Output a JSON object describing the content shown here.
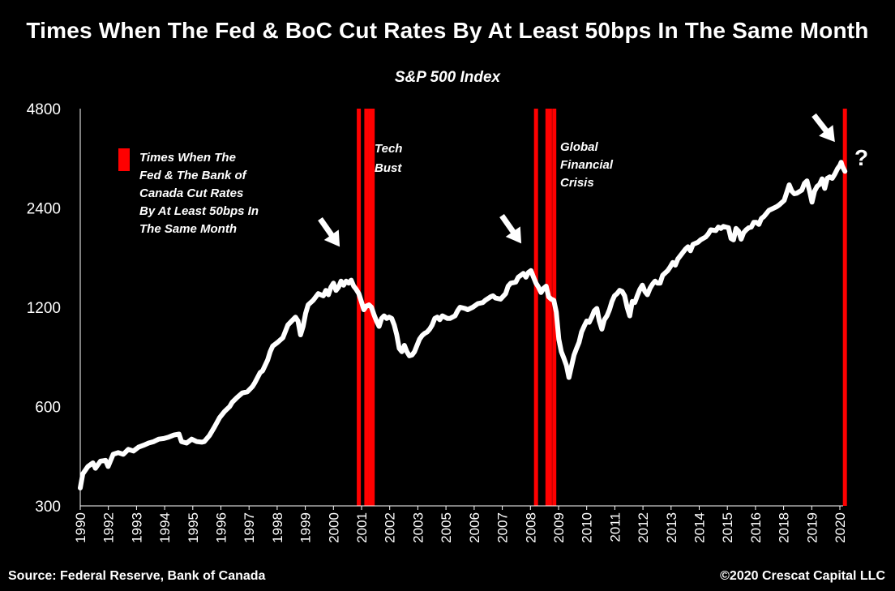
{
  "chart_data": {
    "type": "line",
    "title": "Times When The Fed & BoC Cut Rates By At Least 50bps In The Same Month",
    "subtitle": "S&P 500 Index",
    "y_scale": "log",
    "ylim": [
      300,
      4800
    ],
    "y_ticks": [
      "300",
      "600",
      "1200",
      "2400",
      "4800"
    ],
    "xlim": [
      1990,
      2020
    ],
    "x_tick_labels": [
      "1990",
      "1992",
      "1993",
      "1994",
      "1995",
      "1996",
      "1997",
      "1998",
      "1999",
      "2000",
      "2001",
      "2002",
      "2003",
      "2005",
      "2006",
      "2007",
      "2008",
      "2009",
      "2010",
      "2011",
      "2012",
      "2013",
      "2014",
      "2015",
      "2016",
      "2018",
      "2019",
      "2020"
    ],
    "series": [
      {
        "name": "S&P 500 Index",
        "color": "#ffffff",
        "points": [
          [
            1990.0,
            340
          ],
          [
            1990.1,
            375
          ],
          [
            1990.3,
            395
          ],
          [
            1990.5,
            405
          ],
          [
            1990.6,
            390
          ],
          [
            1990.8,
            410
          ],
          [
            1991.0,
            412
          ],
          [
            1991.1,
            395
          ],
          [
            1991.3,
            430
          ],
          [
            1991.5,
            435
          ],
          [
            1991.7,
            430
          ],
          [
            1991.9,
            445
          ],
          [
            1992.1,
            440
          ],
          [
            1992.3,
            452
          ],
          [
            1992.5,
            458
          ],
          [
            1992.7,
            465
          ],
          [
            1992.9,
            470
          ],
          [
            1993.1,
            478
          ],
          [
            1993.3,
            480
          ],
          [
            1993.5,
            485
          ],
          [
            1993.7,
            492
          ],
          [
            1993.9,
            495
          ],
          [
            1994.0,
            470
          ],
          [
            1994.2,
            465
          ],
          [
            1994.4,
            478
          ],
          [
            1994.6,
            470
          ],
          [
            1994.8,
            468
          ],
          [
            1994.9,
            470
          ],
          [
            1995.1,
            490
          ],
          [
            1995.3,
            520
          ],
          [
            1995.5,
            555
          ],
          [
            1995.7,
            580
          ],
          [
            1995.9,
            600
          ],
          [
            1996.0,
            618
          ],
          [
            1996.2,
            640
          ],
          [
            1996.4,
            660
          ],
          [
            1996.6,
            665
          ],
          [
            1996.8,
            690
          ],
          [
            1996.9,
            710
          ],
          [
            1997.1,
            760
          ],
          [
            1997.2,
            770
          ],
          [
            1997.4,
            830
          ],
          [
            1997.5,
            880
          ],
          [
            1997.6,
            915
          ],
          [
            1997.8,
            940
          ],
          [
            1997.9,
            955
          ],
          [
            1998.0,
            970
          ],
          [
            1998.2,
            1060
          ],
          [
            1998.4,
            1100
          ],
          [
            1998.5,
            1120
          ],
          [
            1998.6,
            1090
          ],
          [
            1998.7,
            990
          ],
          [
            1998.8,
            1050
          ],
          [
            1998.9,
            1150
          ],
          [
            1999.0,
            1220
          ],
          [
            1999.2,
            1260
          ],
          [
            1999.4,
            1320
          ],
          [
            1999.6,
            1300
          ],
          [
            1999.7,
            1350
          ],
          [
            1999.8,
            1310
          ],
          [
            1999.9,
            1380
          ],
          [
            2000.0,
            1420
          ],
          [
            2000.1,
            1350
          ],
          [
            2000.2,
            1380
          ],
          [
            2000.3,
            1440
          ],
          [
            2000.4,
            1400
          ],
          [
            2000.5,
            1440
          ],
          [
            2000.6,
            1420
          ],
          [
            2000.7,
            1450
          ],
          [
            2000.8,
            1390
          ],
          [
            2000.9,
            1360
          ],
          [
            2001.0,
            1320
          ],
          [
            2001.1,
            1250
          ],
          [
            2001.2,
            1180
          ],
          [
            2001.3,
            1210
          ],
          [
            2001.4,
            1220
          ],
          [
            2001.5,
            1200
          ],
          [
            2001.6,
            1140
          ],
          [
            2001.7,
            1090
          ],
          [
            2001.8,
            1050
          ],
          [
            2001.9,
            1110
          ],
          [
            2002.0,
            1130
          ],
          [
            2002.1,
            1110
          ],
          [
            2002.2,
            1120
          ],
          [
            2002.3,
            1110
          ],
          [
            2002.4,
            1060
          ],
          [
            2002.5,
            990
          ],
          [
            2002.6,
            900
          ],
          [
            2002.7,
            880
          ],
          [
            2002.8,
            920
          ],
          [
            2002.9,
            880
          ],
          [
            2003.0,
            855
          ],
          [
            2003.1,
            860
          ],
          [
            2003.2,
            880
          ],
          [
            2003.3,
            920
          ],
          [
            2003.4,
            960
          ],
          [
            2003.5,
            985
          ],
          [
            2003.6,
            1000
          ],
          [
            2003.7,
            1010
          ],
          [
            2003.8,
            1030
          ],
          [
            2003.9,
            1060
          ],
          [
            2004.0,
            1110
          ],
          [
            2004.1,
            1120
          ],
          [
            2004.2,
            1100
          ],
          [
            2004.3,
            1130
          ],
          [
            2004.5,
            1110
          ],
          [
            2004.6,
            1110
          ],
          [
            2004.8,
            1130
          ],
          [
            2004.9,
            1170
          ],
          [
            2005.0,
            1200
          ],
          [
            2005.2,
            1190
          ],
          [
            2005.3,
            1180
          ],
          [
            2005.5,
            1200
          ],
          [
            2005.7,
            1230
          ],
          [
            2005.9,
            1240
          ],
          [
            2006.0,
            1260
          ],
          [
            2006.2,
            1290
          ],
          [
            2006.3,
            1300
          ],
          [
            2006.4,
            1280
          ],
          [
            2006.6,
            1270
          ],
          [
            2006.8,
            1320
          ],
          [
            2006.9,
            1390
          ],
          [
            2007.0,
            1420
          ],
          [
            2007.2,
            1430
          ],
          [
            2007.3,
            1480
          ],
          [
            2007.4,
            1500
          ],
          [
            2007.5,
            1520
          ],
          [
            2007.6,
            1480
          ],
          [
            2007.7,
            1530
          ],
          [
            2007.8,
            1550
          ],
          [
            2007.9,
            1480
          ],
          [
            2008.0,
            1420
          ],
          [
            2008.1,
            1380
          ],
          [
            2008.2,
            1330
          ],
          [
            2008.3,
            1370
          ],
          [
            2008.4,
            1390
          ],
          [
            2008.5,
            1290
          ],
          [
            2008.6,
            1270
          ],
          [
            2008.7,
            1260
          ],
          [
            2008.8,
            1160
          ],
          [
            2008.9,
            960
          ],
          [
            2009.0,
            880
          ],
          [
            2009.1,
            840
          ],
          [
            2009.2,
            800
          ],
          [
            2009.3,
            735
          ],
          [
            2009.4,
            795
          ],
          [
            2009.5,
            860
          ],
          [
            2009.6,
            900
          ],
          [
            2009.7,
            940
          ],
          [
            2009.8,
            1010
          ],
          [
            2009.9,
            1050
          ],
          [
            2010.0,
            1090
          ],
          [
            2010.1,
            1080
          ],
          [
            2010.2,
            1120
          ],
          [
            2010.3,
            1170
          ],
          [
            2010.4,
            1190
          ],
          [
            2010.5,
            1090
          ],
          [
            2010.6,
            1030
          ],
          [
            2010.7,
            1100
          ],
          [
            2010.8,
            1130
          ],
          [
            2010.9,
            1180
          ],
          [
            2011.0,
            1250
          ],
          [
            2011.1,
            1300
          ],
          [
            2011.2,
            1320
          ],
          [
            2011.3,
            1350
          ],
          [
            2011.4,
            1340
          ],
          [
            2011.5,
            1300
          ],
          [
            2011.6,
            1200
          ],
          [
            2011.7,
            1130
          ],
          [
            2011.8,
            1250
          ],
          [
            2011.9,
            1240
          ],
          [
            2012.0,
            1300
          ],
          [
            2012.1,
            1360
          ],
          [
            2012.2,
            1400
          ],
          [
            2012.3,
            1340
          ],
          [
            2012.4,
            1310
          ],
          [
            2012.5,
            1370
          ],
          [
            2012.6,
            1410
          ],
          [
            2012.7,
            1440
          ],
          [
            2012.8,
            1420
          ],
          [
            2012.9,
            1420
          ],
          [
            2013.0,
            1500
          ],
          [
            2013.2,
            1550
          ],
          [
            2013.3,
            1590
          ],
          [
            2013.4,
            1640
          ],
          [
            2013.5,
            1610
          ],
          [
            2013.6,
            1680
          ],
          [
            2013.8,
            1760
          ],
          [
            2013.9,
            1800
          ],
          [
            2014.0,
            1830
          ],
          [
            2014.1,
            1780
          ],
          [
            2014.2,
            1860
          ],
          [
            2014.4,
            1890
          ],
          [
            2014.5,
            1920
          ],
          [
            2014.7,
            1960
          ],
          [
            2014.8,
            2000
          ],
          [
            2014.9,
            2060
          ],
          [
            2015.1,
            2050
          ],
          [
            2015.2,
            2100
          ],
          [
            2015.3,
            2080
          ],
          [
            2015.4,
            2110
          ],
          [
            2015.5,
            2100
          ],
          [
            2015.6,
            2090
          ],
          [
            2015.7,
            1940
          ],
          [
            2015.8,
            1920
          ],
          [
            2015.9,
            2080
          ],
          [
            2016.0,
            2040
          ],
          [
            2016.1,
            1930
          ],
          [
            2016.2,
            2020
          ],
          [
            2016.3,
            2060
          ],
          [
            2016.4,
            2090
          ],
          [
            2016.5,
            2100
          ],
          [
            2016.6,
            2170
          ],
          [
            2016.7,
            2170
          ],
          [
            2016.8,
            2140
          ],
          [
            2016.9,
            2230
          ],
          [
            2017.0,
            2260
          ],
          [
            2017.2,
            2360
          ],
          [
            2017.3,
            2380
          ],
          [
            2017.5,
            2420
          ],
          [
            2017.6,
            2450
          ],
          [
            2017.8,
            2530
          ],
          [
            2017.9,
            2670
          ],
          [
            2018.0,
            2820
          ],
          [
            2018.1,
            2700
          ],
          [
            2018.2,
            2650
          ],
          [
            2018.3,
            2660
          ],
          [
            2018.5,
            2720
          ],
          [
            2018.6,
            2850
          ],
          [
            2018.7,
            2900
          ],
          [
            2018.8,
            2710
          ],
          [
            2018.9,
            2500
          ],
          [
            2019.0,
            2700
          ],
          [
            2019.1,
            2790
          ],
          [
            2019.2,
            2830
          ],
          [
            2019.3,
            2940
          ],
          [
            2019.4,
            2750
          ],
          [
            2019.5,
            2950
          ],
          [
            2019.6,
            2980
          ],
          [
            2019.7,
            2950
          ],
          [
            2019.8,
            3040
          ],
          [
            2019.9,
            3150
          ],
          [
            2020.0,
            3230
          ],
          [
            2020.05,
            3300
          ],
          [
            2020.1,
            3210
          ],
          [
            2020.2,
            3100
          ]
        ]
      }
    ],
    "rate_cut_months": [
      2001.0,
      2001.3,
      2001.45,
      2001.55,
      2008.0,
      2008.45,
      2008.55,
      2008.72,
      2020.2
    ],
    "annotations": [
      "Tech",
      "Bust",
      "Global",
      "Financial",
      "Crisis",
      "?"
    ],
    "legend": {
      "label_lines": [
        "Times When The",
        "Fed & The Bank of",
        "Canada Cut Rates",
        "By At Least 50bps In",
        "The Same Month"
      ],
      "color": "#ff0000"
    },
    "colors": {
      "background": "#000000",
      "line": "#ffffff",
      "bars": "#ff0000"
    }
  },
  "footer": {
    "source": "Source: Federal Reserve, Bank of Canada",
    "copyright": "©2020 Crescat Capital LLC"
  }
}
